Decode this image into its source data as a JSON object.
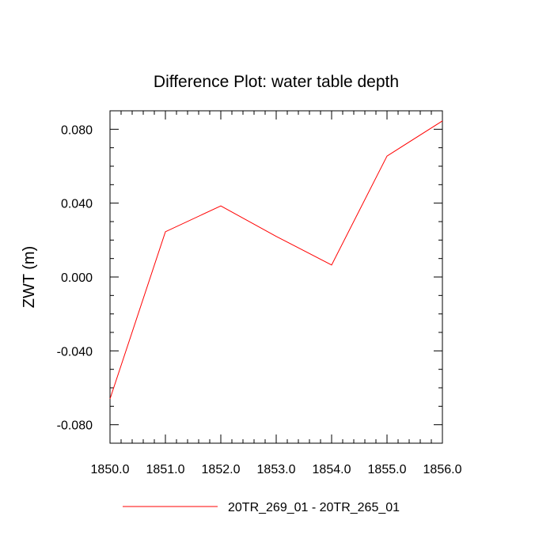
{
  "chart_data": {
    "type": "line",
    "title": "Difference Plot: water table depth",
    "xlabel": "",
    "ylabel": "ZWT  (m)",
    "xlim": [
      1850.0,
      1856.0
    ],
    "ylim": [
      -0.09,
      0.09
    ],
    "x_ticks": [
      "1850.0",
      "1851.0",
      "1852.0",
      "1853.0",
      "1854.0",
      "1855.0",
      "1856.0"
    ],
    "x_tick_values": [
      1850,
      1851,
      1852,
      1853,
      1854,
      1855,
      1856
    ],
    "y_ticks": [
      "-0.080",
      "-0.040",
      "0.000",
      "0.040",
      "0.080"
    ],
    "y_tick_values": [
      -0.08,
      -0.04,
      0.0,
      0.04,
      0.08
    ],
    "grid": false,
    "legend_position": "bottom-center",
    "series": [
      {
        "name": "20TR_269_01 - 20TR_265_01",
        "color": "#ff0000",
        "x": [
          1850,
          1851,
          1852,
          1853,
          1854,
          1855,
          1856
        ],
        "values": [
          -0.066,
          0.0245,
          0.0385,
          0.022,
          0.0065,
          0.0655,
          0.0845
        ]
      }
    ]
  }
}
